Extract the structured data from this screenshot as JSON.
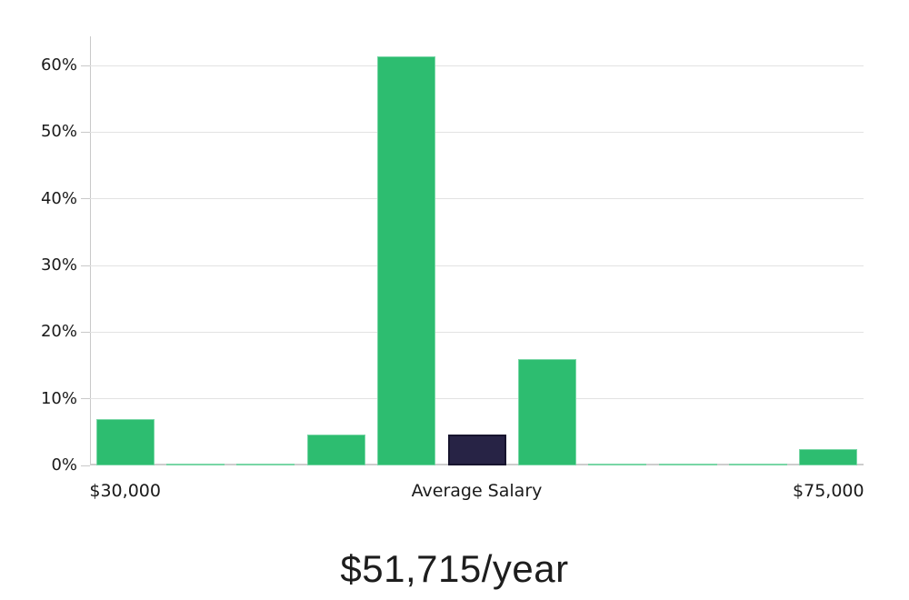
{
  "chart_data": {
    "type": "bar",
    "title": "$51,715/year",
    "subtitle": "",
    "xlabel": "",
    "ylabel": "",
    "legend": null,
    "grid": true,
    "y_axis": {
      "ticks": [
        0,
        10,
        20,
        30,
        40,
        50,
        60
      ],
      "tick_suffix": "%",
      "min": 0,
      "max": 64.4
    },
    "x_axis": {
      "tick_labels": [
        {
          "bin": 0,
          "label": "$30,000"
        },
        {
          "bin": 5,
          "label": "Average Salary"
        },
        {
          "bin": 10,
          "label": "$75,000"
        }
      ]
    },
    "bars": [
      {
        "value_pct": 6.9,
        "highlight": false
      },
      {
        "value_pct": 0.2,
        "highlight": false
      },
      {
        "value_pct": 0.2,
        "highlight": false
      },
      {
        "value_pct": 4.6,
        "highlight": false
      },
      {
        "value_pct": 61.3,
        "highlight": false
      },
      {
        "value_pct": 4.6,
        "highlight": true
      },
      {
        "value_pct": 15.9,
        "highlight": false
      },
      {
        "value_pct": 0.2,
        "highlight": false
      },
      {
        "value_pct": 0.2,
        "highlight": false
      },
      {
        "value_pct": 0.2,
        "highlight": false
      },
      {
        "value_pct": 2.4,
        "highlight": false
      }
    ],
    "highlight_meaning": "Average Salary",
    "colors": {
      "bar": "#2dbd70",
      "bar_border": "#79d6a6",
      "highlight_bar": "#272345",
      "highlight_bar_border": "#17142e",
      "grid": "#e2e2e2",
      "axis": "#c9c9c9",
      "text": "#1a1a1a",
      "background": "#ffffff"
    }
  }
}
